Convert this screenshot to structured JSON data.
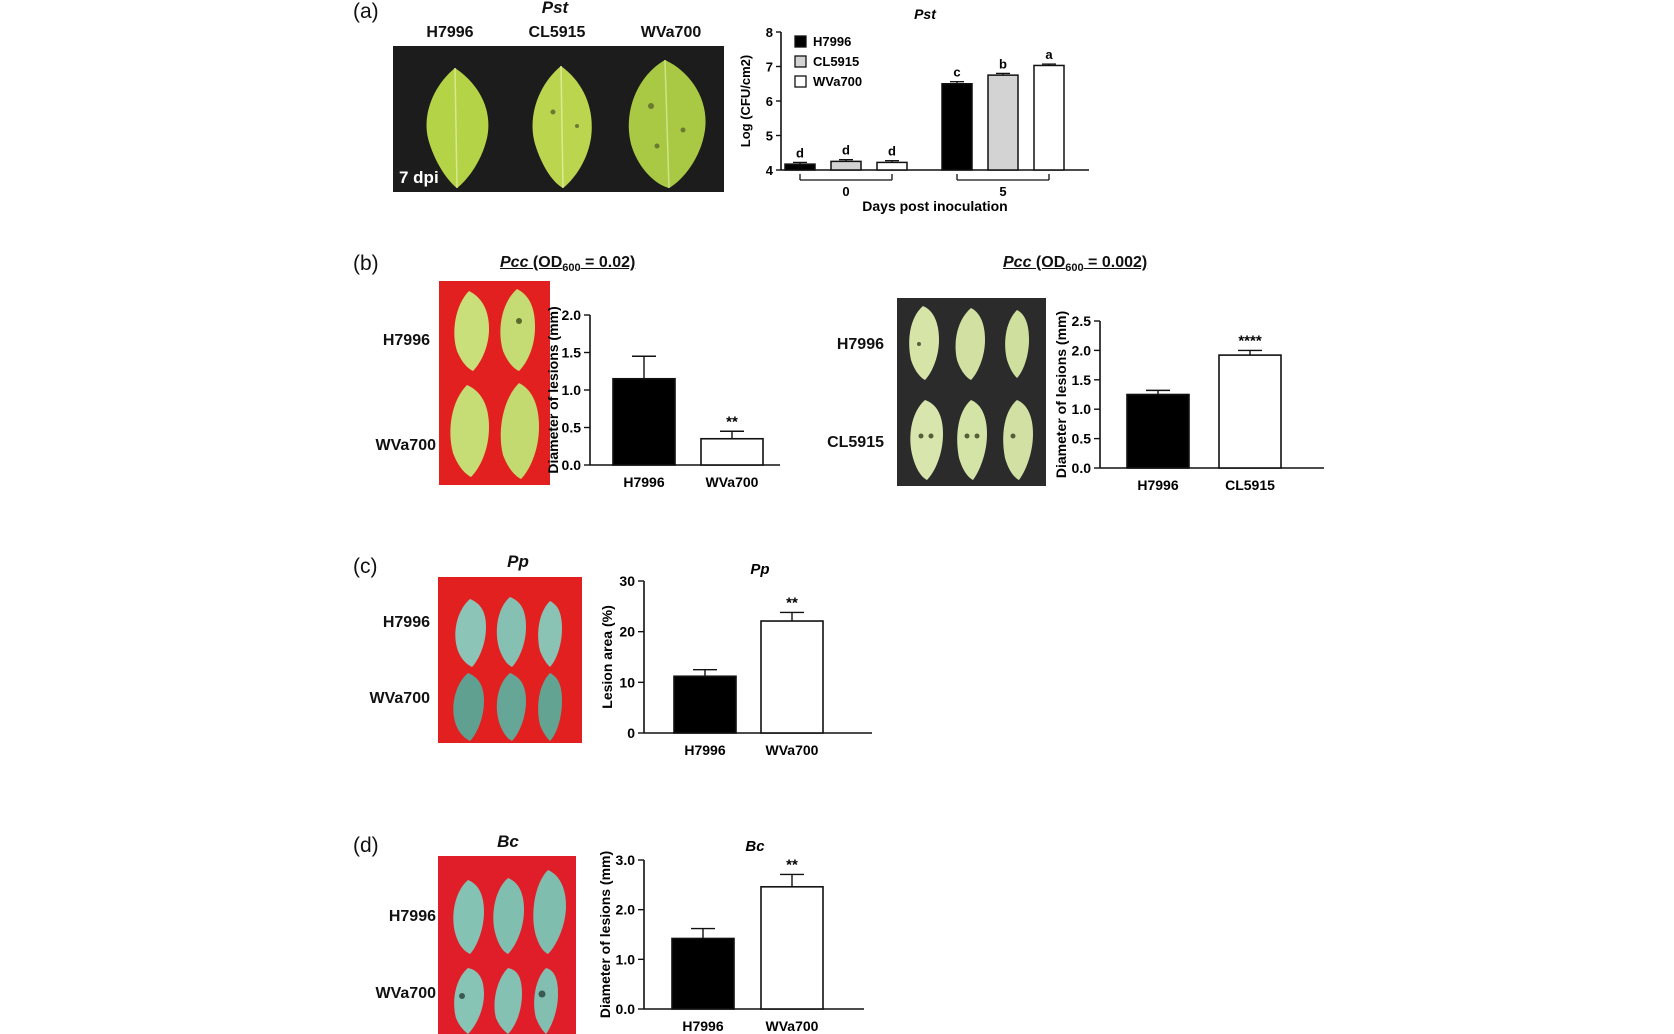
{
  "panels": {
    "a": {
      "label": "(a)",
      "photo_title": "Pst",
      "photo_columns": [
        "H7996",
        "CL5915",
        "WVa700"
      ],
      "photo_tag": "7 dpi"
    },
    "b": {
      "label": "(b)",
      "left_title": {
        "pathogen": "Pcc",
        "prefix": " (OD",
        "sub": "600",
        "suffix": " = 0.02)"
      },
      "left_rows": [
        "H7996",
        "WVa700"
      ],
      "right_title": {
        "pathogen": "Pcc",
        "prefix": " (OD",
        "sub": "600",
        "suffix": " = 0.002)"
      },
      "right_rows": [
        "H7996",
        "CL5915"
      ]
    },
    "c": {
      "label": "(c)",
      "photo_title": "Pp",
      "rows": [
        "H7996",
        "WVa700"
      ]
    },
    "d": {
      "label": "(d)",
      "photo_title": "Bc",
      "rows": [
        "H7996",
        "WVa700"
      ]
    }
  },
  "chart_data": [
    {
      "id": "a",
      "type": "bar",
      "title": "Pst",
      "xlabel": "Days post inoculation",
      "ylabel": "Log (CFU/cm2)",
      "ylim": [
        4,
        8
      ],
      "yticks": [
        4,
        5,
        6,
        7,
        8
      ],
      "categories": [
        "0",
        "5"
      ],
      "legend_position": "top-left",
      "series": [
        {
          "name": "H7996",
          "color": "#000000",
          "values": [
            4.17,
            6.5
          ],
          "errors": [
            0.05,
            0.06
          ],
          "letters": [
            "d",
            "c"
          ]
        },
        {
          "name": "CL5915",
          "color": "#d3d3d3",
          "values": [
            4.25,
            6.75
          ],
          "errors": [
            0.05,
            0.05
          ],
          "letters": [
            "d",
            "b"
          ]
        },
        {
          "name": "WVa700",
          "color": "#ffffff",
          "values": [
            4.22,
            7.03
          ],
          "errors": [
            0.05,
            0.04
          ],
          "letters": [
            "d",
            "a"
          ]
        }
      ]
    },
    {
      "id": "b-left",
      "type": "bar",
      "title": "",
      "xlabel": "",
      "ylabel": "Diameter of lesions (mm)",
      "ylim": [
        0,
        2.0
      ],
      "yticks": [
        "0.0",
        "0.5",
        "1.0",
        "1.5",
        "2.0"
      ],
      "categories": [
        "H7996",
        "WVa700"
      ],
      "values": [
        1.15,
        0.35
      ],
      "errors": [
        0.3,
        0.1
      ],
      "colors": [
        "#000000",
        "#ffffff"
      ],
      "annotations": [
        "",
        "**"
      ]
    },
    {
      "id": "b-right",
      "type": "bar",
      "title": "",
      "xlabel": "",
      "ylabel": "Diameter of lesions (mm)",
      "ylim": [
        0,
        2.5
      ],
      "yticks": [
        "0.0",
        "0.5",
        "1.0",
        "1.5",
        "2.0",
        "2.5"
      ],
      "categories": [
        "H7996",
        "CL5915"
      ],
      "values": [
        1.25,
        1.92
      ],
      "errors": [
        0.07,
        0.08
      ],
      "colors": [
        "#000000",
        "#ffffff"
      ],
      "annotations": [
        "",
        "****"
      ]
    },
    {
      "id": "c",
      "type": "bar",
      "title": "Pp",
      "xlabel": "",
      "ylabel": "Lesion area (%)",
      "ylim": [
        0,
        30
      ],
      "yticks": [
        "0",
        "10",
        "20",
        "30"
      ],
      "categories": [
        "H7996",
        "WVa700"
      ],
      "values": [
        11.2,
        22.1
      ],
      "errors": [
        1.3,
        1.7
      ],
      "colors": [
        "#000000",
        "#ffffff"
      ],
      "annotations": [
        "",
        "**"
      ]
    },
    {
      "id": "d",
      "type": "bar",
      "title": "Bc",
      "xlabel": "",
      "ylabel": "Diameter of lesions (mm)",
      "ylim": [
        0,
        3.0
      ],
      "yticks": [
        "0.0",
        "1.0",
        "2.0",
        "3.0"
      ],
      "categories": [
        "H7996",
        "WVa700"
      ],
      "values": [
        1.42,
        2.46
      ],
      "errors": [
        0.2,
        0.25
      ],
      "colors": [
        "#000000",
        "#ffffff"
      ],
      "annotations": [
        "",
        "**"
      ]
    }
  ],
  "colors": {
    "photo_black": "#1a1a1a",
    "photo_dark_gray": "#2d2d2d",
    "photo_red": "#e2201f",
    "leaf_yellow_green": "#b8d94a",
    "leaf_pale": "#d9e6a8",
    "leaf_teal": "#7fb8a8"
  }
}
